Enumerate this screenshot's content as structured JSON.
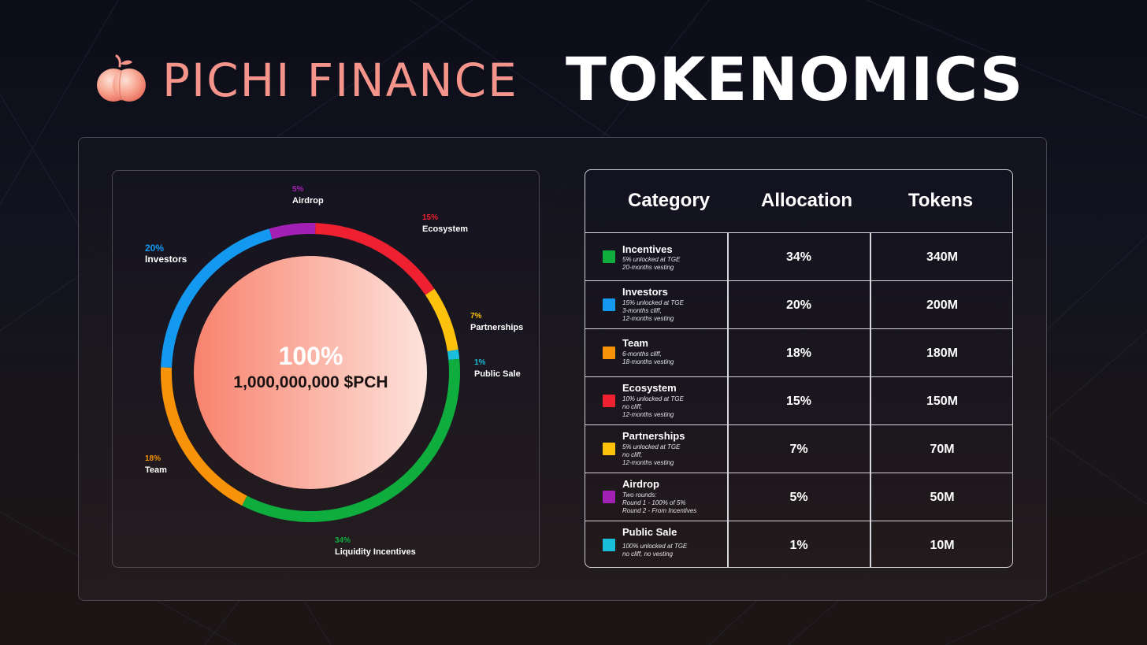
{
  "header": {
    "brand": "PICHI FINANCE",
    "title": "TOKENOMICS"
  },
  "colors": {
    "brand": "#f4948a",
    "incentives": "#0fac3e",
    "investors": "#1499f1",
    "team": "#f79209",
    "ecosystem": "#ef2130",
    "partnerships": "#fdc30c",
    "airdrop": "#a320b4",
    "public_sale": "#19bedb",
    "center_gradient": [
      "#f8826d",
      "#fde3dc"
    ]
  },
  "chart_data": {
    "type": "pie",
    "style": "donut",
    "center": {
      "percent": "100%",
      "supply": "1,000,000,000 $PCH"
    },
    "slices": [
      {
        "name": "Airdrop",
        "label": "5%",
        "value": 5,
        "color": "#a320b4"
      },
      {
        "name": "Ecosystem",
        "label": "15%",
        "value": 15,
        "color": "#ef2130"
      },
      {
        "name": "Partnerships",
        "label": "7%",
        "value": 7,
        "color": "#fdc30c"
      },
      {
        "name": "Public Sale",
        "label": "1%",
        "value": 1,
        "color": "#19bedb"
      },
      {
        "name": "Liquidity Incentives",
        "label": "34%",
        "value": 34,
        "color": "#0fac3e"
      },
      {
        "name": "Team",
        "label": "18%",
        "value": 18,
        "color": "#f79209"
      },
      {
        "name": "Investors",
        "label": "20%",
        "value": 20,
        "color": "#1499f1"
      }
    ]
  },
  "table": {
    "headers": [
      "Category",
      "Allocation",
      "Tokens"
    ],
    "rows": [
      {
        "name": "Incentives",
        "notes": [
          "5% unlocked at TGE",
          "20-months vesting"
        ],
        "allocation": "34%",
        "tokens": "340M",
        "color": "#0fac3e"
      },
      {
        "name": "Investors",
        "notes": [
          "15% unlocked at TGE",
          "3-months cliff,",
          "12-months vesting"
        ],
        "allocation": "20%",
        "tokens": "200M",
        "color": "#1499f1"
      },
      {
        "name": "Team",
        "notes": [
          "6-months cliff,",
          "18-months vesting"
        ],
        "allocation": "18%",
        "tokens": "180M",
        "color": "#f79209"
      },
      {
        "name": "Ecosystem",
        "notes": [
          "10% unlocked at TGE",
          "no cliff,",
          "12-months vesting"
        ],
        "allocation": "15%",
        "tokens": "150M",
        "color": "#ef2130"
      },
      {
        "name": "Partnerships",
        "notes": [
          "5% unlocked at TGE",
          "no cliff,",
          "12-months vesting"
        ],
        "allocation": "7%",
        "tokens": "70M",
        "color": "#fdc30c"
      },
      {
        "name": "Airdrop",
        "notes": [
          "Two rounds:",
          "Round 1 - 100% of 5%",
          "Round 2 - From Incentives"
        ],
        "allocation": "5%",
        "tokens": "50M",
        "color": "#a320b4"
      },
      {
        "name": "Public Sale",
        "notes": [
          "100% unlocked at TGE",
          "no cliff, no vesting"
        ],
        "allocation": "1%",
        "tokens": "10M",
        "color": "#19bedb"
      }
    ]
  }
}
